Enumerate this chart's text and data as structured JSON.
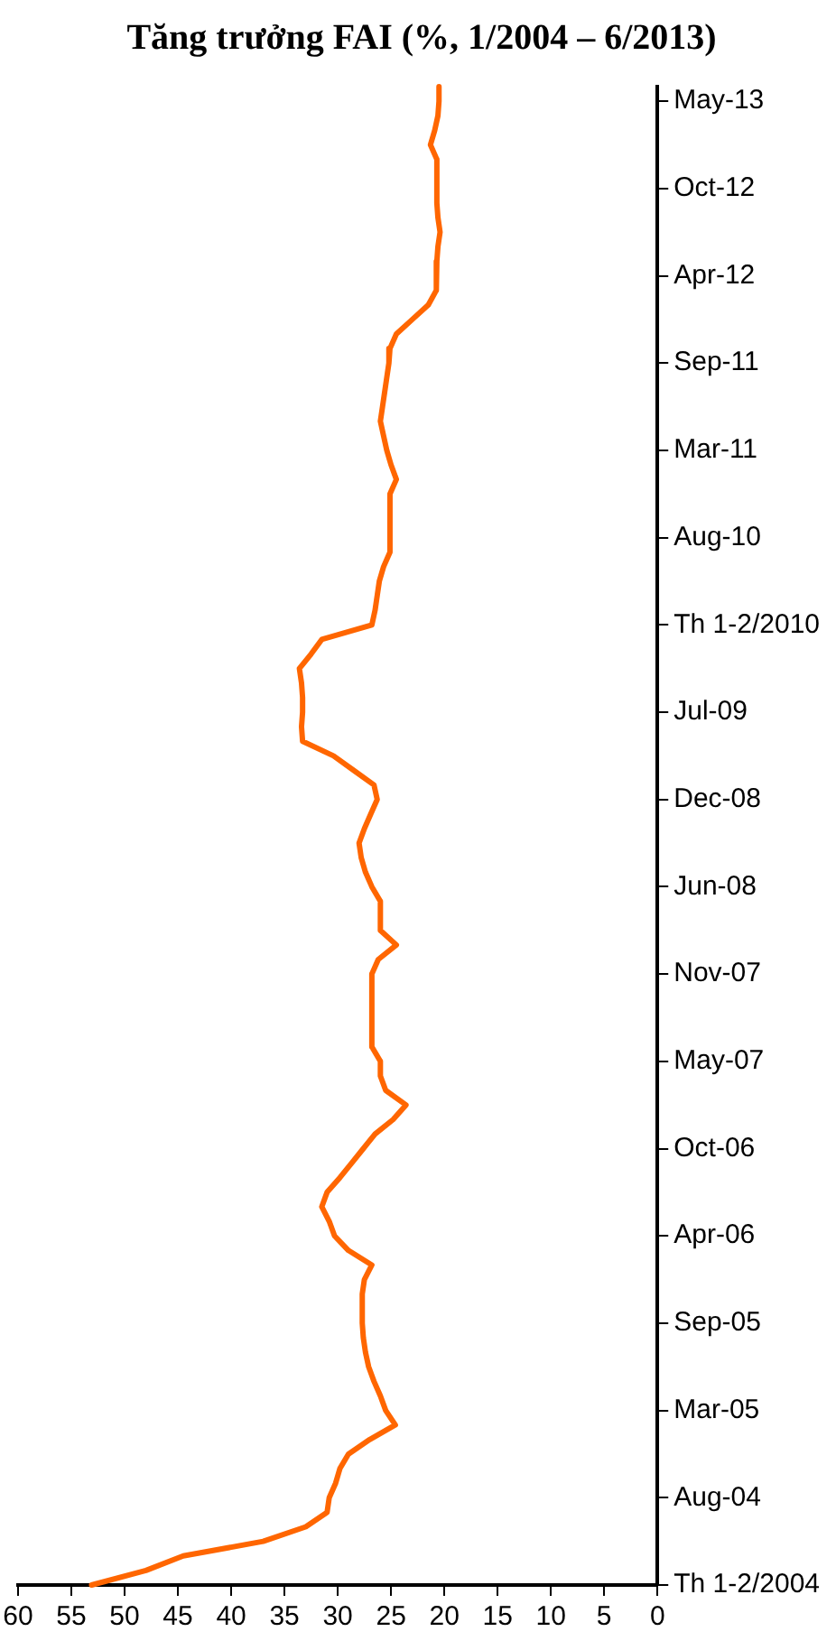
{
  "chart_data": {
    "type": "line",
    "title": "Tăng trưởng FAI (%, 1/2004 – 6/2013)",
    "categories": [
      null,
      "May-13",
      null,
      null,
      null,
      null,
      null,
      "Oct-12",
      null,
      null,
      null,
      null,
      null,
      "Apr-12",
      null,
      null,
      null,
      null,
      null,
      "Sep-11",
      null,
      null,
      null,
      null,
      null,
      "Mar-11",
      null,
      null,
      null,
      null,
      null,
      "Aug-10",
      null,
      null,
      null,
      null,
      null,
      "Th 1-2/2010",
      null,
      null,
      null,
      null,
      null,
      "Jul-09",
      null,
      null,
      null,
      null,
      null,
      "Dec-08",
      null,
      null,
      null,
      null,
      null,
      "Jun-08",
      null,
      null,
      null,
      null,
      null,
      "Nov-07",
      null,
      null,
      null,
      null,
      null,
      "May-07",
      null,
      null,
      null,
      null,
      null,
      "Oct-06",
      null,
      null,
      null,
      null,
      null,
      "Apr-06",
      null,
      null,
      null,
      null,
      null,
      "Sep-05",
      null,
      null,
      null,
      null,
      null,
      "Mar-05",
      null,
      null,
      null,
      null,
      null,
      "Aug-04",
      null,
      null,
      null,
      null,
      null,
      "Th 1-2/2004"
    ],
    "series": [
      {
        "color": "#ff6600",
        "values": [
          20.5,
          20.5,
          20.6,
          20.9,
          21.3,
          20.7,
          20.7,
          20.7,
          20.7,
          20.6,
          20.4,
          20.6,
          20.7,
          20.7,
          20.8,
          21.5,
          23,
          24.5,
          25.1,
          25.2,
          25.4,
          25.6,
          25.8,
          26,
          25.7,
          25.4,
          25,
          24.5,
          25.1,
          25.1,
          25.1,
          25.1,
          25.1,
          25.7,
          26.1,
          26.3,
          26.5,
          26.8,
          31.5,
          32.5,
          33.6,
          33.4,
          33.3,
          33.3,
          33.4,
          33.3,
          30.4,
          28.5,
          26.6,
          26.3,
          26.9,
          27.5,
          28,
          27.8,
          27.4,
          26.8,
          26,
          26,
          26,
          24.5,
          26.2,
          26.8,
          26.8,
          26.8,
          26.8,
          26.8,
          26.8,
          26,
          26,
          25.5,
          23.6,
          24.8,
          26.5,
          27.6,
          28.7,
          29.8,
          31,
          31.5,
          30.8,
          30.3,
          29,
          26.8,
          27.5,
          27.7,
          27.7,
          27.7,
          27.6,
          27.4,
          27.1,
          26.6,
          26,
          25.5,
          24.6,
          27,
          29,
          29.8,
          30.2,
          30.8,
          31,
          33,
          37,
          44.5,
          48,
          53.1
        ]
      }
    ],
    "orientation": "horizontal",
    "xlim": [
      60,
      0
    ],
    "xticks": [
      0,
      5,
      10,
      15,
      20,
      25,
      30,
      35,
      40,
      45,
      50,
      55,
      60
    ],
    "grid": false,
    "legend": false,
    "marker": "none",
    "line_style": "solid"
  }
}
